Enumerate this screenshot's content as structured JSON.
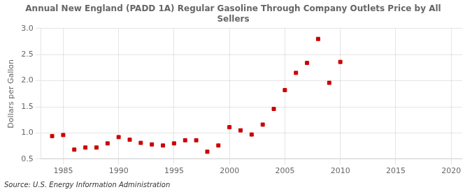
{
  "chart_data": {
    "type": "scatter",
    "title": "Annual New England (PADD 1A) Regular Gasoline Through Company Outlets Price by All\nSellers",
    "ylabel": "Dollars per Gallon",
    "annotations": [
      "Source: U.S. Energy Information Administration"
    ],
    "x": [
      1984,
      1985,
      1986,
      1987,
      1988,
      1989,
      1990,
      1991,
      1992,
      1993,
      1994,
      1995,
      1996,
      1997,
      1998,
      1999,
      2000,
      2001,
      2002,
      2003,
      2004,
      2005,
      2006,
      2007,
      2008,
      2009,
      2010
    ],
    "values": [
      0.94,
      0.96,
      0.68,
      0.72,
      0.72,
      0.8,
      0.92,
      0.87,
      0.81,
      0.78,
      0.76,
      0.8,
      0.86,
      0.86,
      0.64,
      0.76,
      1.11,
      1.05,
      0.97,
      1.16,
      1.46,
      1.82,
      2.15,
      2.34,
      2.8,
      1.96,
      2.36
    ],
    "color": "#cc0000",
    "marker": "square",
    "xlim": [
      1983,
      2021
    ],
    "xticks": [
      1985,
      1990,
      1995,
      2000,
      2005,
      2010,
      2015,
      2020
    ],
    "ylim": [
      0.5,
      3.0
    ],
    "yticks": [
      0.5,
      {
        "value": 1.0,
        "label": "1.0"
      },
      1.5,
      {
        "value": 2.0,
        "label": "2.0"
      },
      2.5,
      {
        "value": 3.0,
        "label": "3.0"
      }
    ],
    "grid": true
  }
}
